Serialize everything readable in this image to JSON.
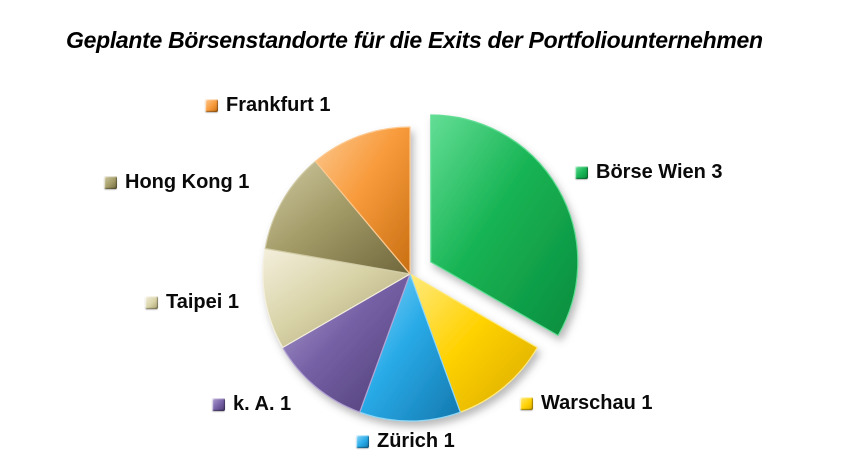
{
  "title": "Geplante Börsenstandorte für die Exits der Portfoliounternehmen",
  "chart_data": {
    "type": "pie",
    "title": "Geplante Börsenstandorte für die Exits der Portfoliounternehmen",
    "categories": [
      "Börse Wien",
      "Warschau",
      "Zürich",
      "k. A.",
      "Taipei",
      "Hong Kong",
      "Frankfurt"
    ],
    "values": [
      3,
      1,
      1,
      1,
      1,
      1,
      1
    ],
    "total": 9,
    "start_angle_deg": 0,
    "direction": "clockwise",
    "legend_position": "around",
    "slices": [
      {
        "key": "boersewien",
        "label": "Börse Wien 3",
        "value": 3,
        "exploded": true,
        "color": "#16B353",
        "color_light": "#63DE95",
        "color_dark": "#0C8C3E"
      },
      {
        "key": "warschau",
        "label": "Warschau 1",
        "value": 1,
        "exploded": false,
        "color": "#FFD203",
        "color_light": "#FFEA7E",
        "color_dark": "#D8A900"
      },
      {
        "key": "zuerich",
        "label": "Zürich 1",
        "value": 1,
        "exploded": false,
        "color": "#29ABE8",
        "color_light": "#8ED7F7",
        "color_dark": "#1478AE"
      },
      {
        "key": "ka",
        "label": "k. A. 1",
        "value": 1,
        "exploded": false,
        "color": "#7560A5",
        "color_light": "#B2A2D4",
        "color_dark": "#4C3B72"
      },
      {
        "key": "taipei",
        "label": "Taipei 1",
        "value": 1,
        "exploded": false,
        "color": "#D9D3A8",
        "color_light": "#F3EFDC",
        "color_dark": "#A89F70"
      },
      {
        "key": "hongkong",
        "label": "Hong Kong 1",
        "value": 1,
        "exploded": false,
        "color": "#A49C68",
        "color_light": "#D0CAA4",
        "color_dark": "#6F673C"
      },
      {
        "key": "frankfurt",
        "label": "Frankfurt 1",
        "value": 1,
        "exploded": false,
        "color": "#F89B3C",
        "color_light": "#FCC990",
        "color_dark": "#C86F12"
      }
    ]
  }
}
